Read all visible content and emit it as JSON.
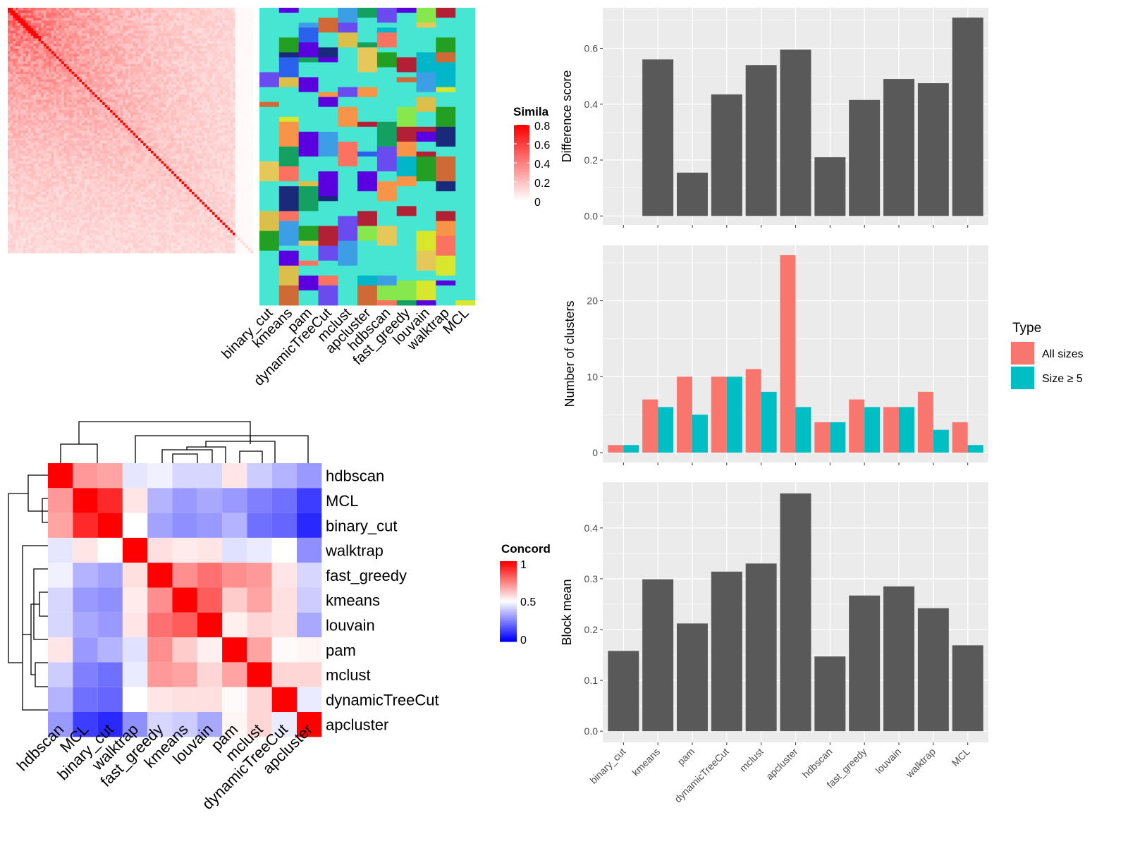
{
  "chart_data": [
    {
      "type": "heatmap",
      "panel": "similarity-heatmap",
      "legend_title": "Simila",
      "legend_ticks": [
        "0.8",
        "0.6",
        "0.4",
        "0.2",
        "0"
      ],
      "scale": [
        0,
        0.8
      ],
      "colors": {
        "low": "#ffffff",
        "high": "#ff0000"
      }
    },
    {
      "type": "heatmap",
      "panel": "cluster-assignments",
      "columns": [
        "binary_cut",
        "kmeans",
        "pam",
        "dynamicTreeCut",
        "mclust",
        "apcluster",
        "hdbscan",
        "fast_greedy",
        "louvain",
        "walktrap",
        "MCL"
      ]
    },
    {
      "type": "heatmap",
      "panel": "concordance-heatmap",
      "legend_title": "Concord",
      "legend_ticks": [
        "1",
        "0.5",
        "0"
      ],
      "scale": [
        0,
        1
      ],
      "colors": {
        "low": "#0000ff",
        "mid": "#ffffff",
        "high": "#ff0000"
      },
      "rows": [
        "hdbscan",
        "MCL",
        "binary_cut",
        "walktrap",
        "fast_greedy",
        "kmeans",
        "louvain",
        "pam",
        "mclust",
        "dynamicTreeCut",
        "apcluster"
      ],
      "cols": [
        "hdbscan",
        "MCL",
        "binary_cut",
        "walktrap",
        "fast_greedy",
        "kmeans",
        "louvain",
        "pam",
        "mclust",
        "dynamicTreeCut",
        "apcluster"
      ],
      "values": [
        [
          1.0,
          0.7,
          0.68,
          0.45,
          0.47,
          0.42,
          0.42,
          0.55,
          0.4,
          0.35,
          0.3
        ],
        [
          0.7,
          1.0,
          0.92,
          0.55,
          0.35,
          0.3,
          0.33,
          0.3,
          0.25,
          0.22,
          0.12
        ],
        [
          0.68,
          0.92,
          1.0,
          0.5,
          0.32,
          0.28,
          0.3,
          0.35,
          0.22,
          0.2,
          0.08
        ],
        [
          0.45,
          0.55,
          0.5,
          1.0,
          0.56,
          0.54,
          0.55,
          0.44,
          0.46,
          0.5,
          0.28
        ],
        [
          0.47,
          0.35,
          0.32,
          0.56,
          1.0,
          0.72,
          0.78,
          0.72,
          0.7,
          0.55,
          0.42
        ],
        [
          0.42,
          0.3,
          0.28,
          0.54,
          0.72,
          1.0,
          0.82,
          0.6,
          0.68,
          0.56,
          0.4
        ],
        [
          0.42,
          0.33,
          0.3,
          0.55,
          0.78,
          0.82,
          1.0,
          0.53,
          0.58,
          0.56,
          0.33
        ],
        [
          0.55,
          0.3,
          0.35,
          0.44,
          0.72,
          0.6,
          0.53,
          1.0,
          0.68,
          0.51,
          0.52
        ],
        [
          0.4,
          0.25,
          0.22,
          0.46,
          0.7,
          0.68,
          0.58,
          0.68,
          1.0,
          0.58,
          0.58
        ],
        [
          0.35,
          0.22,
          0.2,
          0.5,
          0.55,
          0.56,
          0.56,
          0.51,
          0.58,
          1.0,
          0.46
        ],
        [
          0.3,
          0.12,
          0.08,
          0.28,
          0.42,
          0.4,
          0.33,
          0.52,
          0.58,
          0.46,
          1.0
        ]
      ]
    },
    {
      "type": "bar",
      "panel": "difference-score",
      "categories": [
        "binary_cut",
        "kmeans",
        "pam",
        "dynamicTreeCut",
        "mclust",
        "apcluster",
        "hdbscan",
        "fast_greedy",
        "louvain",
        "walktrap",
        "MCL"
      ],
      "values": [
        0.0,
        0.56,
        0.155,
        0.435,
        0.54,
        0.595,
        0.21,
        0.415,
        0.49,
        0.475,
        0.71
      ],
      "ylabel": "Difference score",
      "ylim": [
        -0.032,
        0.745
      ],
      "yticks": [
        "0.0",
        "0.2",
        "0.4",
        "0.6"
      ],
      "yticks_values": [
        0,
        0.2,
        0.4,
        0.6
      ],
      "grid": true
    },
    {
      "type": "bar",
      "panel": "number-of-clusters",
      "categories": [
        "binary_cut",
        "kmeans",
        "pam",
        "dynamicTreeCut",
        "mclust",
        "apcluster",
        "hdbscan",
        "fast_greedy",
        "louvain",
        "walktrap",
        "MCL"
      ],
      "series": [
        {
          "name": "All sizes",
          "color": "#f8766d",
          "values": [
            1,
            7,
            10,
            10,
            11,
            26,
            4,
            7,
            6,
            8,
            4
          ]
        },
        {
          "name": "Size ≥ 5",
          "color": "#00bfc4",
          "values": [
            1,
            6,
            5,
            10,
            8,
            6,
            4,
            6,
            6,
            3,
            1
          ]
        }
      ],
      "ylabel": "Number of clusters",
      "ylim": [
        -1.3,
        27.3
      ],
      "yticks": [
        "0",
        "10",
        "20"
      ],
      "yticks_values": [
        0,
        10,
        20
      ],
      "legend_title": "Type",
      "legend_position": "right",
      "grid": true
    },
    {
      "type": "bar",
      "panel": "block-mean",
      "categories": [
        "binary_cut",
        "kmeans",
        "pam",
        "dynamicTreeCut",
        "mclust",
        "apcluster",
        "hdbscan",
        "fast_greedy",
        "louvain",
        "walktrap",
        "MCL"
      ],
      "values": [
        0.158,
        0.299,
        0.212,
        0.314,
        0.33,
        0.468,
        0.147,
        0.267,
        0.285,
        0.242,
        0.169
      ],
      "ylabel": "Block mean",
      "ylim": [
        -0.022,
        0.49
      ],
      "yticks": [
        "0.0",
        "0.1",
        "0.2",
        "0.3",
        "0.4"
      ],
      "yticks_values": [
        0,
        0.1,
        0.2,
        0.3,
        0.4
      ],
      "grid": true
    }
  ]
}
